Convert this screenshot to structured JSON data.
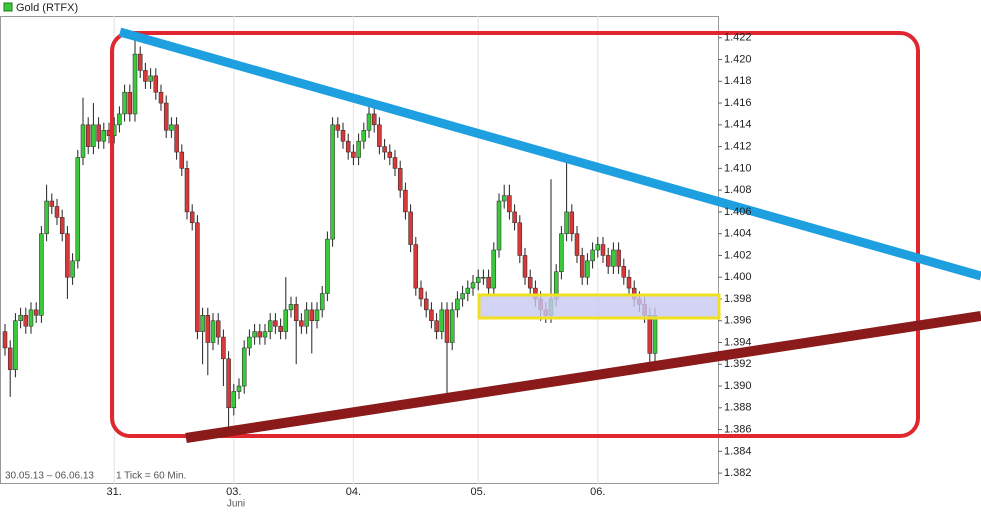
{
  "chart_data": {
    "type": "candlestick",
    "range_note": "30.05.13 – 06.06.13",
    "interval_note": "1 Tick = 60 Min.",
    "month_label": "Juni",
    "ylim": [
      1.381,
      1.424
    ],
    "yticks": [
      1.382,
      1.384,
      1.386,
      1.388,
      {
        "value": 1.39,
        "label": "1.390"
      },
      1.392,
      1.394,
      1.396,
      1.398,
      {
        "value": 1.4,
        "label": "1.400"
      },
      1.402,
      1.404,
      1.406,
      1.408,
      {
        "value": 1.41,
        "label": "1.410"
      },
      1.412,
      1.414,
      1.416,
      1.418,
      {
        "value": 1.42,
        "label": "1.420"
      },
      1.422
    ],
    "categories": [
      null,
      null,
      null,
      null,
      null,
      null,
      null,
      null,
      null,
      null,
      null,
      null,
      null,
      null,
      null,
      null,
      null,
      null,
      null,
      null,
      null,
      "31.",
      null,
      null,
      null,
      null,
      null,
      null,
      null,
      null,
      null,
      null,
      null,
      null,
      null,
      null,
      null,
      null,
      null,
      null,
      null,
      null,
      null,
      null,
      "03.",
      null,
      null,
      null,
      null,
      null,
      null,
      null,
      null,
      null,
      null,
      null,
      null,
      null,
      null,
      null,
      null,
      null,
      null,
      null,
      null,
      null,
      null,
      "04.",
      null,
      null,
      null,
      null,
      null,
      null,
      null,
      null,
      null,
      null,
      null,
      null,
      null,
      null,
      null,
      null,
      null,
      null,
      null,
      null,
      null,
      null,
      null,
      "05.",
      null,
      null,
      null,
      null,
      null,
      null,
      null,
      null,
      null,
      null,
      null,
      null,
      null,
      null,
      null,
      null,
      null,
      null,
      null,
      null,
      null,
      null,
      "06.",
      null,
      null,
      null,
      null,
      null,
      null,
      null,
      null,
      null,
      null,
      null
    ],
    "up_color": "#3cc83c",
    "down_color": "#d43a3a",
    "grid": true,
    "series": [
      {
        "name": "Gold (RTFX)",
        "open": [
          1.395,
          1.3935,
          1.3915,
          1.396,
          1.3965,
          1.3955,
          1.397,
          1.3965,
          1.404,
          1.407,
          1.4065,
          1.4055,
          1.404,
          1.4,
          1.4015,
          1.411,
          1.414,
          1.412,
          1.414,
          1.4125,
          1.4135,
          1.413,
          1.414,
          1.415,
          1.417,
          1.415,
          1.4205,
          1.419,
          1.418,
          1.4185,
          1.417,
          1.416,
          1.4135,
          1.414,
          1.4115,
          1.41,
          1.406,
          1.405,
          1.395,
          1.3965,
          1.394,
          1.396,
          1.3945,
          1.3925,
          1.388,
          1.3895,
          1.39,
          1.3935,
          1.3945,
          1.395,
          1.3945,
          1.395,
          1.396,
          1.3955,
          1.395,
          1.397,
          1.3975,
          1.396,
          1.3955,
          1.397,
          1.396,
          1.397,
          1.3985,
          1.4035,
          1.414,
          1.4135,
          1.4125,
          1.4115,
          1.411,
          1.4125,
          1.4135,
          1.415,
          1.414,
          1.412,
          1.4115,
          1.411,
          1.41,
          1.408,
          1.406,
          1.403,
          1.399,
          1.398,
          1.397,
          1.396,
          1.395,
          1.397,
          1.394,
          1.397,
          1.398,
          1.3985,
          1.399,
          1.3995,
          1.4,
          1.4,
          1.399,
          1.4025,
          1.407,
          1.4075,
          1.406,
          1.405,
          1.402,
          1.4,
          1.399,
          1.398,
          1.397,
          1.3965,
          1.398,
          1.4005,
          1.404,
          1.406,
          1.404,
          1.402,
          1.4,
          1.4015,
          1.4025,
          1.403,
          1.402,
          1.401,
          1.4025,
          1.401,
          1.4,
          1.399,
          1.398,
          1.3975,
          1.3965,
          1.393
        ],
        "high": [
          1.3957,
          1.3942,
          1.3967,
          1.3972,
          1.3972,
          1.3977,
          1.3977,
          1.4047,
          1.4085,
          1.4077,
          1.4072,
          1.4062,
          1.4047,
          1.4022,
          1.4117,
          1.4165,
          1.4147,
          1.416,
          1.4147,
          1.4142,
          1.4142,
          1.4147,
          1.4157,
          1.4177,
          1.4177,
          1.422,
          1.4212,
          1.4197,
          1.4192,
          1.4192,
          1.4177,
          1.4167,
          1.4147,
          1.4147,
          1.4122,
          1.4107,
          1.4067,
          1.4057,
          1.3972,
          1.3972,
          1.3967,
          1.3967,
          1.3952,
          1.3932,
          1.3902,
          1.3907,
          1.3942,
          1.3952,
          1.3957,
          1.3957,
          1.3957,
          1.3967,
          1.3967,
          1.3962,
          1.4,
          1.3982,
          1.3982,
          1.3967,
          1.3977,
          1.3977,
          1.3977,
          1.3992,
          1.4042,
          1.4147,
          1.4147,
          1.4142,
          1.4132,
          1.4122,
          1.4132,
          1.4142,
          1.4157,
          1.4157,
          1.4147,
          1.4127,
          1.4122,
          1.4117,
          1.4107,
          1.4087,
          1.4067,
          1.4037,
          1.3997,
          1.3987,
          1.3977,
          1.3967,
          1.3977,
          1.3977,
          1.3977,
          1.3987,
          1.3992,
          1.3997,
          1.4002,
          1.4007,
          1.4007,
          1.4007,
          1.4032,
          1.4077,
          1.4085,
          1.4085,
          1.4067,
          1.4057,
          1.4027,
          1.4007,
          1.3997,
          1.3987,
          1.3977,
          1.409,
          1.4012,
          1.4047,
          1.4105,
          1.4067,
          1.4047,
          1.4027,
          1.4022,
          1.4032,
          1.4037,
          1.4037,
          1.4027,
          1.4032,
          1.4032,
          1.4017,
          1.4007,
          1.3997,
          1.3987,
          1.3982,
          1.3972,
          1.3972
        ],
        "low": [
          1.3928,
          1.389,
          1.3908,
          1.3953,
          1.3948,
          1.3948,
          1.3958,
          1.3958,
          1.4033,
          1.4058,
          1.4048,
          1.4033,
          1.398,
          1.3993,
          1.4008,
          1.4103,
          1.4113,
          1.4113,
          1.4118,
          1.4118,
          1.4123,
          1.4123,
          1.4133,
          1.4143,
          1.4143,
          1.4143,
          1.4183,
          1.4173,
          1.4173,
          1.4163,
          1.4153,
          1.4128,
          1.4128,
          1.4108,
          1.4093,
          1.4053,
          1.4043,
          1.3943,
          1.392,
          1.391,
          1.3933,
          1.3938,
          1.39,
          1.3862,
          1.3873,
          1.3888,
          1.3893,
          1.3928,
          1.3938,
          1.3938,
          1.3938,
          1.3943,
          1.3948,
          1.3943,
          1.3943,
          1.3963,
          1.392,
          1.3948,
          1.3948,
          1.393,
          1.3953,
          1.3963,
          1.3978,
          1.4028,
          1.4128,
          1.4118,
          1.4108,
          1.4103,
          1.4103,
          1.4118,
          1.4128,
          1.4133,
          1.4113,
          1.4108,
          1.4103,
          1.4093,
          1.4073,
          1.4053,
          1.4023,
          1.3983,
          1.3973,
          1.3963,
          1.3953,
          1.3943,
          1.3943,
          1.389,
          1.3933,
          1.3963,
          1.3973,
          1.3978,
          1.3983,
          1.3988,
          1.3993,
          1.3983,
          1.3983,
          1.4018,
          1.4063,
          1.4053,
          1.4043,
          1.4013,
          1.3993,
          1.3983,
          1.3973,
          1.396,
          1.3958,
          1.3958,
          1.3973,
          1.3998,
          1.4033,
          1.4033,
          1.4013,
          1.3993,
          1.3993,
          1.4008,
          1.4018,
          1.4013,
          1.4003,
          1.4003,
          1.4003,
          1.3993,
          1.3983,
          1.3973,
          1.3968,
          1.3958,
          1.3918,
          1.3923
        ],
        "close": [
          1.3935,
          1.3915,
          1.396,
          1.3965,
          1.3955,
          1.397,
          1.3965,
          1.404,
          1.407,
          1.4065,
          1.4055,
          1.404,
          1.4,
          1.4015,
          1.411,
          1.414,
          1.412,
          1.414,
          1.4125,
          1.4135,
          1.413,
          1.414,
          1.415,
          1.417,
          1.415,
          1.4205,
          1.419,
          1.418,
          1.4185,
          1.417,
          1.416,
          1.4135,
          1.414,
          1.4115,
          1.41,
          1.406,
          1.405,
          1.395,
          1.3965,
          1.394,
          1.396,
          1.3945,
          1.3925,
          1.388,
          1.3895,
          1.39,
          1.3935,
          1.3945,
          1.395,
          1.3945,
          1.395,
          1.396,
          1.3955,
          1.395,
          1.397,
          1.3975,
          1.396,
          1.3955,
          1.397,
          1.396,
          1.397,
          1.3985,
          1.4035,
          1.414,
          1.4135,
          1.4125,
          1.4115,
          1.411,
          1.4125,
          1.4135,
          1.415,
          1.414,
          1.412,
          1.4115,
          1.411,
          1.41,
          1.408,
          1.406,
          1.403,
          1.399,
          1.398,
          1.397,
          1.396,
          1.395,
          1.397,
          1.394,
          1.397,
          1.398,
          1.3985,
          1.399,
          1.3995,
          1.4,
          1.4,
          1.399,
          1.4025,
          1.407,
          1.4075,
          1.406,
          1.405,
          1.402,
          1.4,
          1.399,
          1.398,
          1.397,
          1.3965,
          1.398,
          1.4005,
          1.404,
          1.406,
          1.404,
          1.402,
          1.4,
          1.4015,
          1.4025,
          1.403,
          1.402,
          1.401,
          1.4025,
          1.401,
          1.4,
          1.399,
          1.398,
          1.3975,
          1.3965,
          1.393,
          1.3965
        ]
      }
    ]
  }
}
